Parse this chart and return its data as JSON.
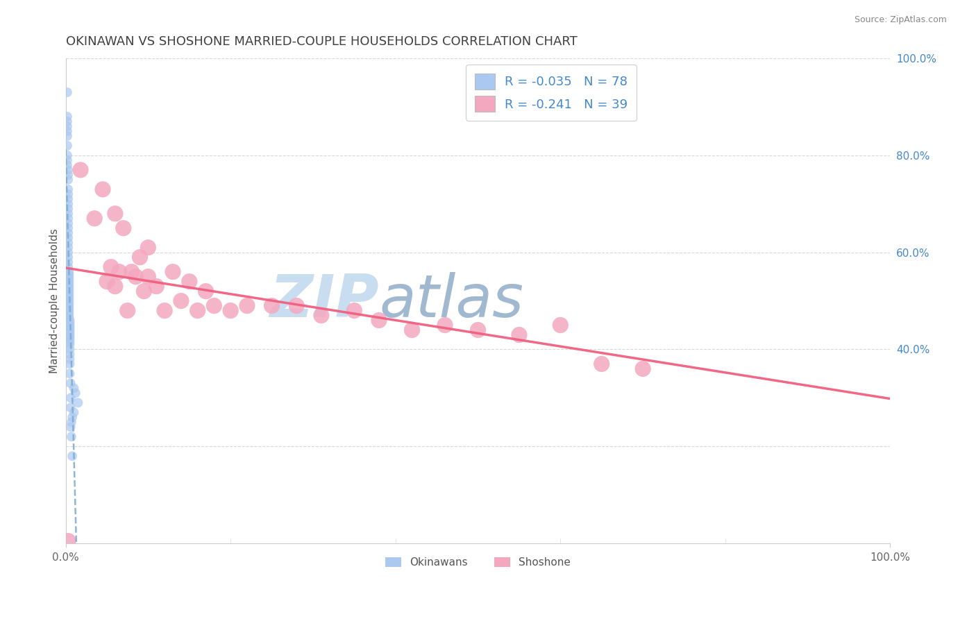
{
  "title": "OKINAWAN VS SHOSHONE MARRIED-COUPLE HOUSEHOLDS CORRELATION CHART",
  "source": "Source: ZipAtlas.com",
  "ylabel": "Married-couple Households",
  "legend_okinawan_R": "-0.035",
  "legend_okinawan_N": "78",
  "legend_shoshone_R": "-0.241",
  "legend_shoshone_N": "39",
  "okinawan_color": "#aac8f0",
  "shoshone_color": "#f4a8c0",
  "okinawan_line_color": "#7aaad0",
  "shoshone_line_color": "#f06080",
  "watermark_zip_color": "#c8ddf0",
  "watermark_atlas_color": "#a0b8d0",
  "background_color": "#ffffff",
  "grid_color": "#d8d8d8",
  "legend_text_color": "#4488cc",
  "title_color": "#404040",
  "source_color": "#888888",
  "okinawan_x": [
    0.002,
    0.002,
    0.002,
    0.002,
    0.002,
    0.002,
    0.002,
    0.002,
    0.002,
    0.002,
    0.003,
    0.003,
    0.003,
    0.003,
    0.003,
    0.003,
    0.003,
    0.003,
    0.003,
    0.003,
    0.003,
    0.003,
    0.003,
    0.003,
    0.003,
    0.003,
    0.003,
    0.003,
    0.003,
    0.003,
    0.004,
    0.004,
    0.004,
    0.004,
    0.004,
    0.004,
    0.004,
    0.004,
    0.004,
    0.004,
    0.004,
    0.004,
    0.004,
    0.004,
    0.004,
    0.004,
    0.004,
    0.004,
    0.004,
    0.004,
    0.005,
    0.005,
    0.005,
    0.005,
    0.005,
    0.005,
    0.005,
    0.005,
    0.005,
    0.005,
    0.005,
    0.005,
    0.005,
    0.005,
    0.005,
    0.005,
    0.006,
    0.006,
    0.006,
    0.007,
    0.007,
    0.008,
    0.01,
    0.012,
    0.015,
    0.01,
    0.008,
    0.006
  ],
  "okinawan_y": [
    0.93,
    0.88,
    0.87,
    0.86,
    0.85,
    0.84,
    0.82,
    0.8,
    0.79,
    0.78,
    0.77,
    0.76,
    0.75,
    0.73,
    0.72,
    0.71,
    0.7,
    0.69,
    0.68,
    0.67,
    0.66,
    0.65,
    0.64,
    0.63,
    0.62,
    0.61,
    0.6,
    0.59,
    0.58,
    0.57,
    0.56,
    0.555,
    0.55,
    0.545,
    0.54,
    0.535,
    0.53,
    0.525,
    0.52,
    0.515,
    0.51,
    0.505,
    0.5,
    0.495,
    0.49,
    0.485,
    0.48,
    0.475,
    0.47,
    0.465,
    0.46,
    0.455,
    0.45,
    0.445,
    0.44,
    0.435,
    0.43,
    0.425,
    0.42,
    0.415,
    0.41,
    0.4,
    0.39,
    0.38,
    0.37,
    0.35,
    0.33,
    0.3,
    0.28,
    0.25,
    0.22,
    0.18,
    0.32,
    0.31,
    0.29,
    0.27,
    0.26,
    0.24
  ],
  "shoshone_x": [
    0.003,
    0.018,
    0.035,
    0.045,
    0.05,
    0.055,
    0.06,
    0.06,
    0.065,
    0.07,
    0.075,
    0.08,
    0.085,
    0.09,
    0.095,
    0.1,
    0.1,
    0.11,
    0.12,
    0.13,
    0.14,
    0.15,
    0.16,
    0.17,
    0.18,
    0.2,
    0.22,
    0.25,
    0.28,
    0.31,
    0.35,
    0.38,
    0.42,
    0.46,
    0.5,
    0.55,
    0.6,
    0.65,
    0.7
  ],
  "shoshone_y": [
    0.005,
    0.77,
    0.67,
    0.73,
    0.54,
    0.57,
    0.68,
    0.53,
    0.56,
    0.65,
    0.48,
    0.56,
    0.55,
    0.59,
    0.52,
    0.55,
    0.61,
    0.53,
    0.48,
    0.56,
    0.5,
    0.54,
    0.48,
    0.52,
    0.49,
    0.48,
    0.49,
    0.49,
    0.49,
    0.47,
    0.48,
    0.46,
    0.44,
    0.45,
    0.44,
    0.43,
    0.45,
    0.37,
    0.36
  ],
  "xlim": [
    0.0,
    1.0
  ],
  "ylim": [
    0.0,
    1.0
  ],
  "ytick_right_labels": [
    "100.0%",
    "80.0%",
    "60.0%",
    "40.0%"
  ],
  "ytick_right_positions": [
    1.0,
    0.8,
    0.6,
    0.4
  ],
  "legend_bottom": [
    "Okinawans",
    "Shoshone"
  ]
}
